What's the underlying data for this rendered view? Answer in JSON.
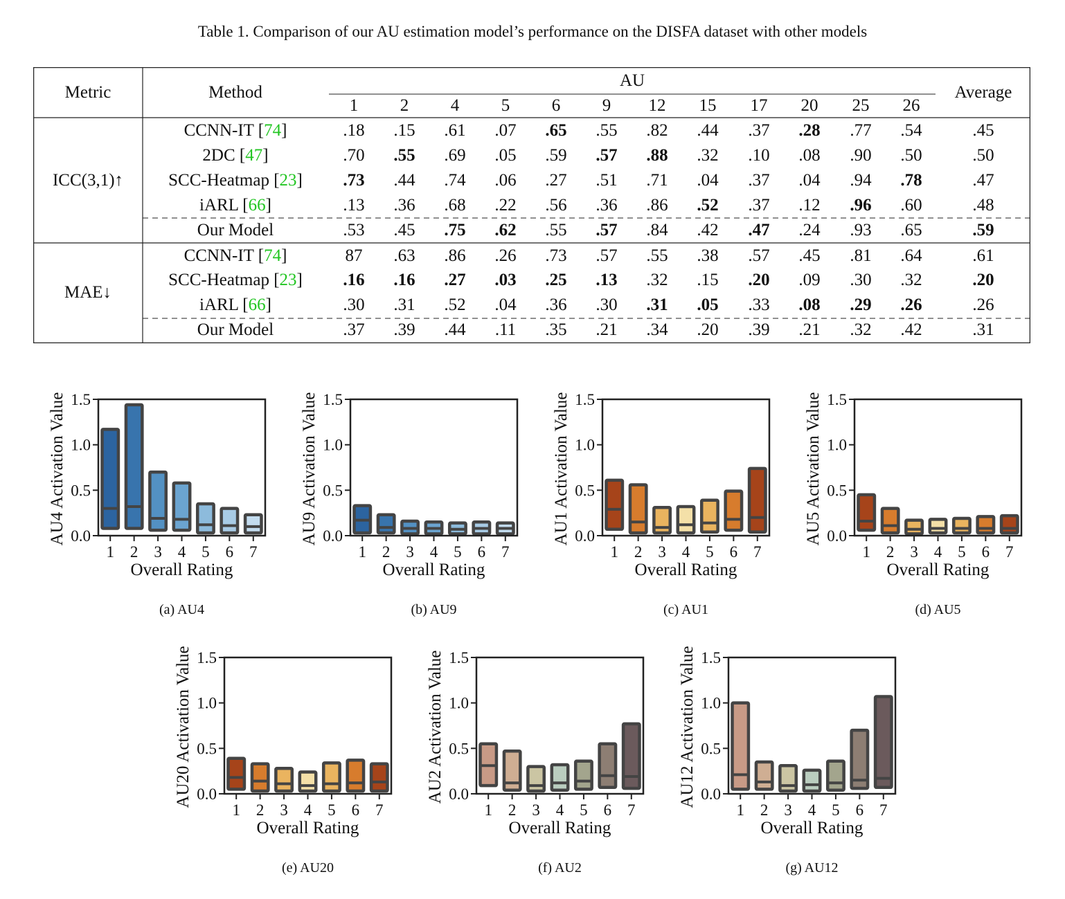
{
  "table": {
    "caption": "Table 1. Comparison of our AU estimation model’s performance on the DISFA dataset with other models",
    "header": {
      "metric": "Metric",
      "method": "Method",
      "au": "AU",
      "average": "Average"
    },
    "au_columns": [
      "1",
      "2",
      "4",
      "5",
      "6",
      "9",
      "12",
      "15",
      "17",
      "20",
      "25",
      "26"
    ],
    "groups": [
      {
        "metric": "ICC(3,1)↑",
        "rows": [
          {
            "method": "CCNN-IT [",
            "cite": "74",
            "close": "]",
            "values": [
              ".18",
              ".15",
              ".61",
              ".07",
              ".65",
              ".55",
              ".82",
              ".44",
              ".37",
              ".28",
              ".77",
              ".54"
            ],
            "average": ".45",
            "bold": [
              false,
              false,
              false,
              false,
              true,
              false,
              false,
              false,
              false,
              true,
              false,
              false
            ],
            "avg_bold": false
          },
          {
            "method": "2DC [",
            "cite": "47",
            "close": "]",
            "values": [
              ".70",
              ".55",
              ".69",
              ".05",
              ".59",
              ".57",
              ".88",
              ".32",
              ".10",
              ".08",
              ".90",
              ".50"
            ],
            "average": ".50",
            "bold": [
              false,
              true,
              false,
              false,
              false,
              true,
              true,
              false,
              false,
              false,
              false,
              false
            ],
            "avg_bold": false
          },
          {
            "method": "SCC-Heatmap [",
            "cite": "23",
            "close": "]",
            "values": [
              ".73",
              ".44",
              ".74",
              ".06",
              ".27",
              ".51",
              ".71",
              ".04",
              ".37",
              ".04",
              ".94",
              ".78"
            ],
            "average": ".47",
            "bold": [
              true,
              false,
              false,
              false,
              false,
              false,
              false,
              false,
              false,
              false,
              false,
              true
            ],
            "avg_bold": false
          },
          {
            "method": "iARL [",
            "cite": "66",
            "close": "]",
            "values": [
              ".13",
              ".36",
              ".68",
              ".22",
              ".56",
              ".36",
              ".86",
              ".52",
              ".37",
              ".12",
              ".96",
              ".60"
            ],
            "average": ".48",
            "bold": [
              false,
              false,
              false,
              false,
              false,
              false,
              false,
              true,
              false,
              false,
              true,
              false
            ],
            "avg_bold": false
          },
          {
            "method": "Our Model",
            "cite": "",
            "close": "",
            "values": [
              ".53",
              ".45",
              ".75",
              ".62",
              ".55",
              ".57",
              ".84",
              ".42",
              ".47",
              ".24",
              ".93",
              ".65"
            ],
            "average": ".59",
            "bold": [
              false,
              false,
              true,
              true,
              false,
              true,
              false,
              false,
              true,
              false,
              false,
              false
            ],
            "avg_bold": true
          }
        ]
      },
      {
        "metric": "MAE↓",
        "rows": [
          {
            "method": "CCNN-IT [",
            "cite": "74",
            "close": "]",
            "values": [
              "87",
              ".63",
              ".86",
              ".26",
              ".73",
              ".57",
              ".55",
              ".38",
              ".57",
              ".45",
              ".81",
              ".64"
            ],
            "average": ".61",
            "bold": [
              false,
              false,
              false,
              false,
              false,
              false,
              false,
              false,
              false,
              false,
              false,
              false
            ],
            "avg_bold": false
          },
          {
            "method": "SCC-Heatmap [",
            "cite": "23",
            "close": "]",
            "values": [
              ".16",
              ".16",
              ".27",
              ".03",
              ".25",
              ".13",
              ".32",
              ".15",
              ".20",
              ".09",
              ".30",
              ".32"
            ],
            "average": ".20",
            "bold": [
              true,
              true,
              true,
              true,
              true,
              true,
              false,
              false,
              true,
              false,
              false,
              false
            ],
            "avg_bold": true
          },
          {
            "method": "iARL [",
            "cite": "66",
            "close": "]",
            "values": [
              ".30",
              ".31",
              ".52",
              ".04",
              ".36",
              ".30",
              ".31",
              ".05",
              ".33",
              ".08",
              ".29",
              ".26"
            ],
            "average": ".26",
            "bold": [
              false,
              false,
              false,
              false,
              false,
              false,
              true,
              true,
              false,
              true,
              true,
              true
            ],
            "avg_bold": false
          },
          {
            "method": "Our Model",
            "cite": "",
            "close": "",
            "values": [
              ".37",
              ".39",
              ".44",
              ".11",
              ".35",
              ".21",
              ".34",
              ".20",
              ".39",
              ".21",
              ".32",
              ".42"
            ],
            "average": ".31",
            "bold": [
              false,
              false,
              false,
              false,
              false,
              false,
              false,
              false,
              false,
              false,
              false,
              false
            ],
            "avg_bold": false
          }
        ]
      }
    ]
  },
  "chart_data": [
    {
      "type": "box",
      "caption": "(a) AU4",
      "xlabel": "Overall Rating",
      "ylabel": "AU4 Activation Value",
      "ylim": [
        0,
        1.5
      ],
      "yticks": [
        "0.0",
        "0.5",
        "1.0",
        "1.5"
      ],
      "categories": [
        "1",
        "2",
        "3",
        "4",
        "5",
        "6",
        "7"
      ],
      "low": [
        0.08,
        0.08,
        0.06,
        0.06,
        0.03,
        0.03,
        0.03
      ],
      "high": [
        1.17,
        1.44,
        0.7,
        0.58,
        0.35,
        0.3,
        0.23
      ],
      "median": [
        0.3,
        0.32,
        0.19,
        0.18,
        0.12,
        0.11,
        0.1
      ],
      "colors": [
        "#2c64a0",
        "#3874ad",
        "#5391c3",
        "#6ba4d0",
        "#8dbbdc",
        "#a8cbe5",
        "#c3dcef"
      ]
    },
    {
      "type": "box",
      "caption": "(b) AU9",
      "xlabel": "Overall Rating",
      "ylabel": "AU9 Activation Value",
      "ylim": [
        0,
        1.5
      ],
      "yticks": [
        "0.0",
        "0.5",
        "1.0",
        "1.5"
      ],
      "categories": [
        "1",
        "2",
        "3",
        "4",
        "5",
        "6",
        "7"
      ],
      "low": [
        0.03,
        0.03,
        0.02,
        0.02,
        0.02,
        0.02,
        0.02
      ],
      "high": [
        0.33,
        0.23,
        0.16,
        0.15,
        0.14,
        0.15,
        0.14
      ],
      "median": [
        0.17,
        0.09,
        0.08,
        0.08,
        0.07,
        0.08,
        0.08
      ],
      "colors": [
        "#2c64a0",
        "#3874ad",
        "#5391c3",
        "#6ba4d0",
        "#8dbbdc",
        "#a8cbe5",
        "#c3dcef"
      ]
    },
    {
      "type": "box",
      "caption": "(c) AU1",
      "xlabel": "Overall Rating",
      "ylabel": "AU1 Activation Value",
      "ylim": [
        0,
        1.5
      ],
      "yticks": [
        "0.0",
        "0.5",
        "1.0",
        "1.5"
      ],
      "categories": [
        "1",
        "2",
        "3",
        "4",
        "5",
        "6",
        "7"
      ],
      "low": [
        0.07,
        0.03,
        0.03,
        0.03,
        0.04,
        0.06,
        0.04
      ],
      "high": [
        0.61,
        0.56,
        0.31,
        0.32,
        0.39,
        0.49,
        0.74
      ],
      "median": [
        0.29,
        0.15,
        0.09,
        0.12,
        0.14,
        0.18,
        0.2
      ],
      "colors": [
        "#a6441a",
        "#d77c2d",
        "#eab45f",
        "#f4e0a8",
        "#eab45f",
        "#d77c2d",
        "#a6441a"
      ]
    },
    {
      "type": "box",
      "caption": "(d) AU5",
      "xlabel": "Overall Rating",
      "ylabel": "AU5 Activation Value",
      "ylim": [
        0,
        1.5
      ],
      "yticks": [
        "0.0",
        "0.5",
        "1.0",
        "1.5"
      ],
      "categories": [
        "1",
        "2",
        "3",
        "4",
        "5",
        "6",
        "7"
      ],
      "low": [
        0.06,
        0.03,
        0.02,
        0.03,
        0.03,
        0.03,
        0.03
      ],
      "high": [
        0.45,
        0.3,
        0.17,
        0.18,
        0.19,
        0.21,
        0.22
      ],
      "median": [
        0.16,
        0.11,
        0.07,
        0.08,
        0.08,
        0.08,
        0.08
      ],
      "colors": [
        "#a6441a",
        "#d77c2d",
        "#eab45f",
        "#f4e0a8",
        "#eab45f",
        "#d77c2d",
        "#a6441a"
      ]
    },
    {
      "type": "box",
      "caption": "(e) AU20",
      "xlabel": "Overall Rating",
      "ylabel": "AU20 Activation Value",
      "ylim": [
        0,
        1.5
      ],
      "yticks": [
        "0.0",
        "0.5",
        "1.0",
        "1.5"
      ],
      "categories": [
        "1",
        "2",
        "3",
        "4",
        "5",
        "6",
        "7"
      ],
      "low": [
        0.05,
        0.03,
        0.03,
        0.03,
        0.03,
        0.03,
        0.03
      ],
      "high": [
        0.39,
        0.33,
        0.28,
        0.24,
        0.34,
        0.37,
        0.33
      ],
      "median": [
        0.18,
        0.14,
        0.11,
        0.09,
        0.11,
        0.12,
        0.13
      ],
      "colors": [
        "#a6441a",
        "#d77c2d",
        "#eab45f",
        "#f4e0a8",
        "#eab45f",
        "#d77c2d",
        "#a6441a"
      ]
    },
    {
      "type": "box",
      "caption": "(f) AU2",
      "xlabel": "Overall Rating",
      "ylabel": "AU2 Activation Value",
      "ylim": [
        0,
        1.5
      ],
      "yticks": [
        "0.0",
        "0.5",
        "1.0",
        "1.5"
      ],
      "categories": [
        "1",
        "2",
        "3",
        "4",
        "5",
        "6",
        "7"
      ],
      "low": [
        0.09,
        0.04,
        0.03,
        0.04,
        0.05,
        0.07,
        0.06
      ],
      "high": [
        0.55,
        0.47,
        0.3,
        0.32,
        0.36,
        0.55,
        0.77
      ],
      "median": [
        0.31,
        0.12,
        0.09,
        0.12,
        0.14,
        0.2,
        0.19
      ],
      "colors": [
        "#c89a86",
        "#cfae93",
        "#cbc5a3",
        "#bacdbf",
        "#a3a58d",
        "#8d7e73",
        "#6b5a5c"
      ]
    },
    {
      "type": "box",
      "caption": "(g) AU12",
      "xlabel": "Overall Rating",
      "ylabel": "AU12 Activation Value",
      "ylim": [
        0,
        1.5
      ],
      "yticks": [
        "0.0",
        "0.5",
        "1.0",
        "1.5"
      ],
      "categories": [
        "1",
        "2",
        "3",
        "4",
        "5",
        "6",
        "7"
      ],
      "low": [
        0.05,
        0.05,
        0.03,
        0.03,
        0.04,
        0.06,
        0.07
      ],
      "high": [
        1.0,
        0.35,
        0.31,
        0.26,
        0.36,
        0.7,
        1.07
      ],
      "median": [
        0.21,
        0.13,
        0.09,
        0.1,
        0.12,
        0.15,
        0.17
      ],
      "colors": [
        "#c89a86",
        "#cfae93",
        "#cbc5a3",
        "#bacdbf",
        "#a3a58d",
        "#8d7e73",
        "#6b5a5c"
      ]
    }
  ]
}
